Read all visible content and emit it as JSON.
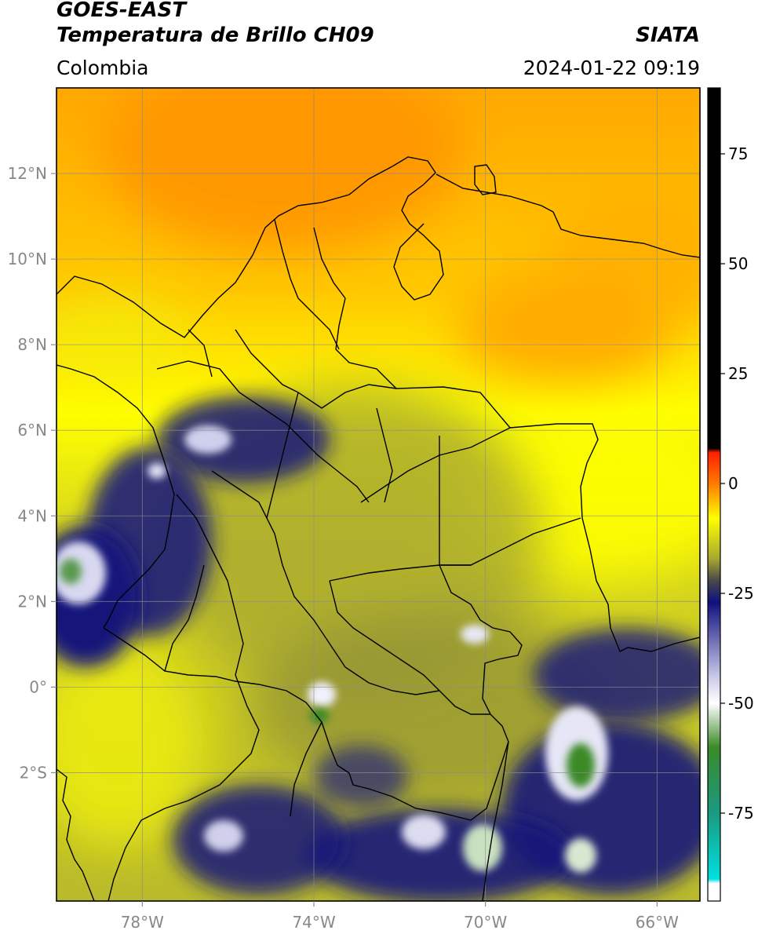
{
  "header": {
    "satellite": "GOES-EAST",
    "product": "Temperatura de Brillo CH09",
    "agency": "SIATA",
    "region": "Colombia",
    "datetime": "2024-01-22 09:19"
  },
  "map": {
    "lon_range": [
      -80,
      -65
    ],
    "lat_range": [
      -5,
      14
    ],
    "lat_ticks": [
      {
        "value": 12,
        "label": "12°N"
      },
      {
        "value": 10,
        "label": "10°N"
      },
      {
        "value": 8,
        "label": "8°N"
      },
      {
        "value": 6,
        "label": "6°N"
      },
      {
        "value": 4,
        "label": "4°N"
      },
      {
        "value": 2,
        "label": "2°N"
      },
      {
        "value": 0,
        "label": "0°"
      },
      {
        "value": -2,
        "label": "2°S"
      }
    ],
    "lon_ticks": [
      {
        "value": -78,
        "label": "78°W"
      },
      {
        "value": -74,
        "label": "74°W"
      },
      {
        "value": -70,
        "label": "70°W"
      },
      {
        "value": -66,
        "label": "66°W"
      }
    ],
    "grid": true
  },
  "colorbar": {
    "range": [
      -95,
      90
    ],
    "ticks": [
      {
        "value": 75,
        "label": "75"
      },
      {
        "value": 50,
        "label": "50"
      },
      {
        "value": 25,
        "label": "25"
      },
      {
        "value": 0,
        "label": "0"
      },
      {
        "value": -25,
        "label": "-25"
      },
      {
        "value": -50,
        "label": "-50"
      },
      {
        "value": -75,
        "label": "-75"
      }
    ],
    "stops": [
      {
        "value": 90,
        "color": "#000000"
      },
      {
        "value": 8,
        "color": "#000000"
      },
      {
        "value": 7,
        "color": "#ff2000"
      },
      {
        "value": 0,
        "color": "#ff7a00"
      },
      {
        "value": -8,
        "color": "#ffff00"
      },
      {
        "value": -17,
        "color": "#a9a930"
      },
      {
        "value": -22,
        "color": "#4a4a4a"
      },
      {
        "value": -27,
        "color": "#10107e"
      },
      {
        "value": -44,
        "color": "#c9c9e8"
      },
      {
        "value": -50,
        "color": "#ffffff"
      },
      {
        "value": -60,
        "color": "#3a8a28"
      },
      {
        "value": -75,
        "color": "#1a9a80"
      },
      {
        "value": -90,
        "color": "#00e0e0"
      },
      {
        "value": -91,
        "color": "#ffffff"
      },
      {
        "value": -95,
        "color": "#ffffff"
      }
    ]
  }
}
